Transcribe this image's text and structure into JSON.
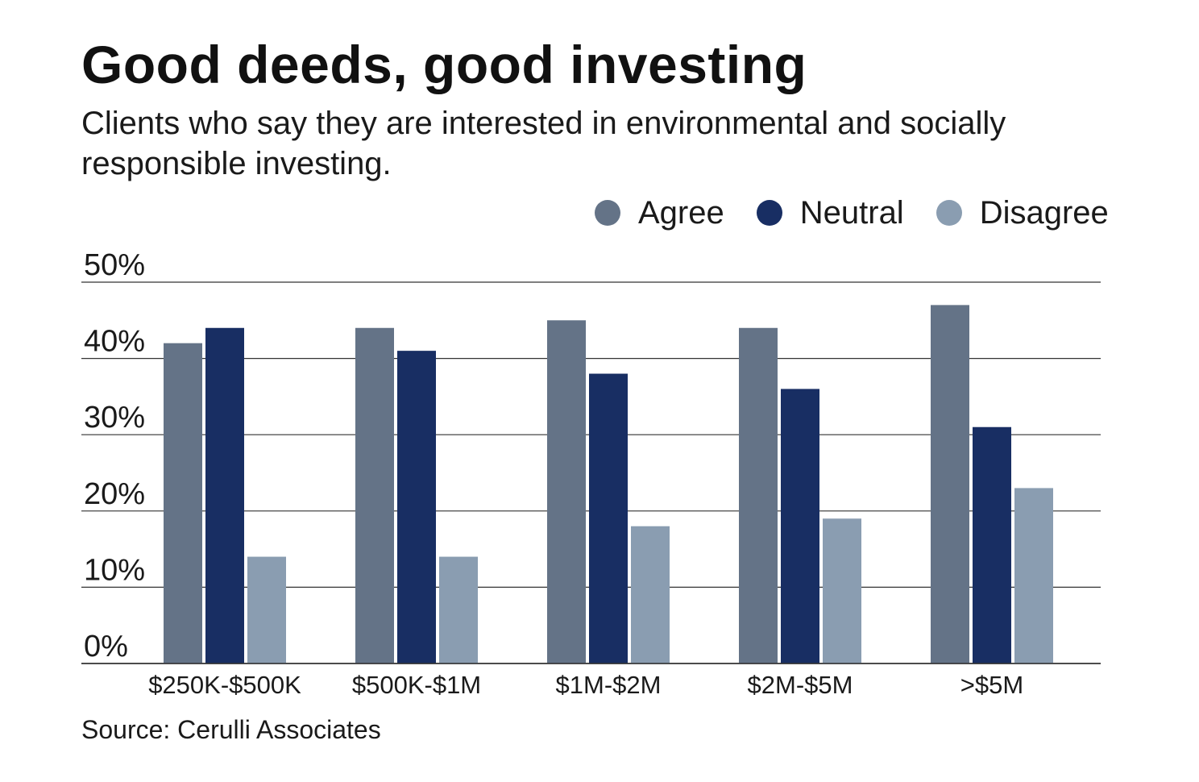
{
  "title": "Good deeds, good investing",
  "subtitle": "Clients who say they are interested in environmental and socially responsible investing.",
  "source": "Source: Cerulli Associates",
  "colors": {
    "agree": "#647387",
    "neutral": "#182e63",
    "disagree": "#8a9db1",
    "gridline": "#333333"
  },
  "legend": [
    {
      "label": "Agree",
      "color": "#647387"
    },
    {
      "label": "Neutral",
      "color": "#182e63"
    },
    {
      "label": "Disagree",
      "color": "#8a9db1"
    }
  ],
  "chart_data": {
    "type": "bar",
    "title": "Good deeds, good investing",
    "subtitle": "Clients who say they are interested in environmental and socially responsible investing.",
    "categories": [
      "$250K-$500K",
      "$500K-$1M",
      "$1M-$2M",
      "$2M-$5M",
      ">$5M"
    ],
    "series": [
      {
        "name": "Agree",
        "color": "#647387",
        "values": [
          42,
          44,
          45,
          44,
          47
        ]
      },
      {
        "name": "Neutral",
        "color": "#182e63",
        "values": [
          44,
          41,
          38,
          36,
          31
        ]
      },
      {
        "name": "Disagree",
        "color": "#8a9db1",
        "values": [
          14,
          14,
          18,
          19,
          23
        ]
      }
    ],
    "yticks": [
      "0%",
      "10%",
      "20%",
      "30%",
      "40%",
      "50%"
    ],
    "ytick_values": [
      0,
      10,
      20,
      30,
      40,
      50
    ],
    "ylim": [
      0,
      50
    ],
    "xlabel": "",
    "ylabel": "",
    "grid": true,
    "legend_position": "top-right"
  }
}
